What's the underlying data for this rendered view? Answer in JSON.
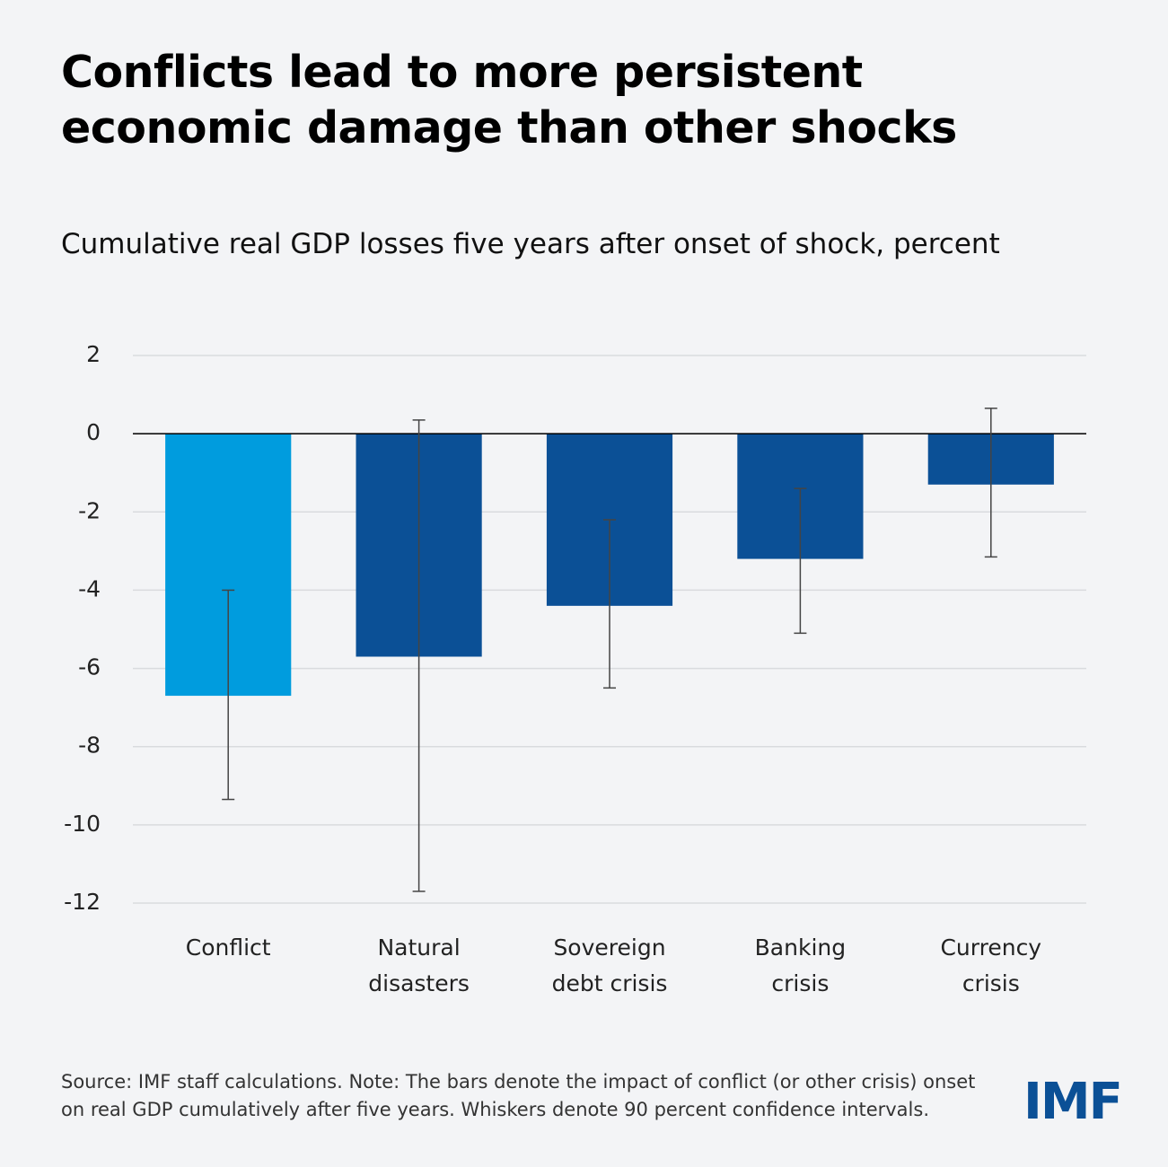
{
  "chart_data": {
    "type": "bar",
    "title": "Conflicts lead to more persistent economic damage than other shocks",
    "subtitle": "Cumulative real GDP losses five years after onset of shock, percent",
    "categories": [
      "Conflict",
      "Natural disasters",
      "Sovereign debt crisis",
      "Banking crisis",
      "Currency crisis"
    ],
    "values": [
      -6.7,
      -5.7,
      -4.4,
      -3.2,
      -1.3
    ],
    "ci_low": [
      -9.35,
      -11.7,
      -6.5,
      -5.1,
      -3.15
    ],
    "ci_high": [
      -4.0,
      0.35,
      -2.2,
      -1.4,
      0.65
    ],
    "colors": [
      "#009cde",
      "#0b5096",
      "#0b5096",
      "#0b5096",
      "#0b5096"
    ],
    "ylim": [
      -12,
      2
    ],
    "yticks": [
      2,
      0,
      -2,
      -4,
      -6,
      -8,
      -10,
      -12
    ],
    "grid": true,
    "note": "Source: IMF staff calculations. Note: The bars denote the impact of conflict (or other crisis) onset on real GDP cumulatively after five years. Whiskers denote 90 percent confidence intervals.",
    "logo": "IMF"
  }
}
